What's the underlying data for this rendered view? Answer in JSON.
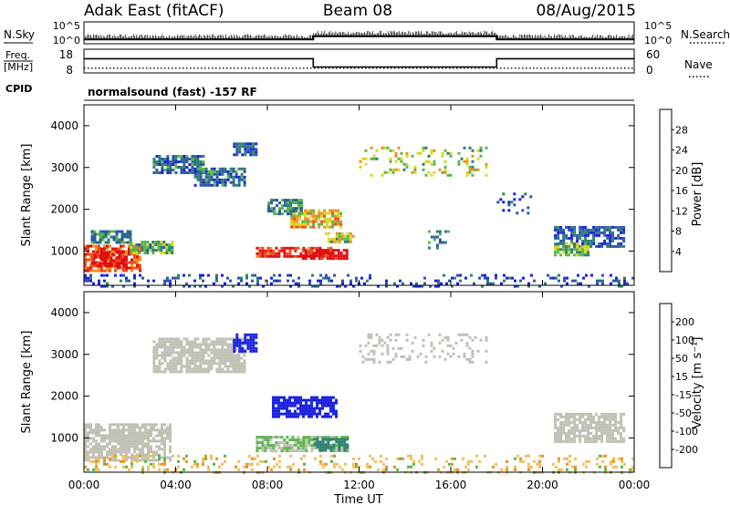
{
  "header": {
    "station": "Adak East (fitACF)",
    "beam": "Beam 08",
    "date": "08/Aug/2015",
    "cpid_label": "CPID",
    "cpid_value": "normalsound (fast) -157 RF"
  },
  "colors": {
    "frame": "#000000",
    "scatter_fill": "#ffffff",
    "ground": "#b4b4b4"
  },
  "chart_data": [
    {
      "type": "line",
      "panel": "noise",
      "left_label": "N.Sky",
      "right_label": "N.Search",
      "right_key_style": "dotted",
      "yscale": "log",
      "left_ticks": [
        "10^5",
        "10^0"
      ],
      "right_ticks": [
        "10^5",
        "10^0"
      ],
      "x_hours": [
        0,
        10,
        10,
        18,
        18,
        24
      ],
      "series": [
        {
          "values": [
            3,
            3,
            30,
            30,
            3,
            3
          ]
        }
      ]
    },
    {
      "type": "line",
      "panel": "frequency",
      "left_label_line1": "Freq.",
      "left_label_line2": "[MHz]",
      "right_label": "Nave",
      "right_key_style": "dotted",
      "left_ticks": [
        "18",
        "8"
      ],
      "right_ticks": [
        "60",
        "0"
      ],
      "ylim": [
        8,
        18
      ],
      "x_hours": [
        0,
        10,
        10,
        18,
        18,
        24
      ],
      "series": [
        {
          "values": [
            14,
            14,
            10.5,
            10.5,
            14,
            14
          ]
        },
        {
          "style": "dotted",
          "values": [
            10,
            10,
            10,
            10,
            10,
            10
          ]
        }
      ]
    },
    {
      "type": "heatmap",
      "panel": "power",
      "ylabel": "Slant Range [km]",
      "yticks": [
        "4000",
        "3000",
        "2000",
        "1000"
      ],
      "ylim": [
        180,
        4500
      ],
      "xlim": [
        0,
        24
      ],
      "colorbar": {
        "title": "Power [dB]",
        "labels": [
          "28",
          "24",
          "20",
          "16",
          "12",
          "8",
          "4"
        ],
        "colors": [
          "#1a22e0",
          "#2c56a8",
          "#2e8070",
          "#5ab84a",
          "#d8d820",
          "#f09020",
          "#f04a20",
          "#e00e10"
        ]
      },
      "regions": [
        {
          "t": [
            0.0,
            2.5
          ],
          "r": [
            500,
            1150
          ],
          "level": 0.8
        },
        {
          "t": [
            0.3,
            1.8
          ],
          "r": [
            650,
            1000
          ],
          "level": 1.0
        },
        {
          "t": [
            2.0,
            3.8
          ],
          "r": [
            950,
            1250
          ],
          "level": 0.4
        },
        {
          "t": [
            0.3,
            2.0
          ],
          "r": [
            1200,
            1500
          ],
          "level": 0.3
        },
        {
          "t": [
            3.0,
            5.2
          ],
          "r": [
            2900,
            3300
          ],
          "level": 0.25
        },
        {
          "t": [
            4.8,
            7.0
          ],
          "r": [
            2600,
            3000
          ],
          "level": 0.25
        },
        {
          "t": [
            6.5,
            7.5
          ],
          "r": [
            3300,
            3600
          ],
          "level": 0.2
        },
        {
          "t": [
            7.5,
            10.8
          ],
          "r": [
            850,
            1100
          ],
          "level": 0.9
        },
        {
          "t": [
            9.5,
            11.5
          ],
          "r": [
            800,
            1050
          ],
          "level": 1.0
        },
        {
          "t": [
            9.0,
            11.2
          ],
          "r": [
            1550,
            2000
          ],
          "level": 0.6
        },
        {
          "t": [
            8.0,
            9.5
          ],
          "r": [
            1900,
            2250
          ],
          "level": 0.3
        },
        {
          "t": [
            10.5,
            11.8
          ],
          "r": [
            1200,
            1450
          ],
          "level": 0.5
        },
        {
          "t": [
            12.0,
            17.5
          ],
          "r": [
            2800,
            3500
          ],
          "level": 0.5,
          "sparse": true
        },
        {
          "t": [
            15.0,
            16.0
          ],
          "r": [
            1100,
            1500
          ],
          "level": 0.3,
          "sparse": true
        },
        {
          "t": [
            18.0,
            19.5
          ],
          "r": [
            1900,
            2400
          ],
          "level": 0.15,
          "sparse": true
        },
        {
          "t": [
            20.5,
            23.5
          ],
          "r": [
            1100,
            1600
          ],
          "level": 0.2
        },
        {
          "t": [
            20.5,
            22.0
          ],
          "r": [
            900,
            1200
          ],
          "level": 0.45
        },
        {
          "t": [
            0.0,
            24.0
          ],
          "r": [
            180,
            450
          ],
          "level": 0.15,
          "sparse": true
        }
      ]
    },
    {
      "type": "heatmap",
      "panel": "velocity",
      "ylabel": "Slant Range [km]",
      "yticks": [
        "4000",
        "3000",
        "2000",
        "1000"
      ],
      "ylim": [
        180,
        4500
      ],
      "xlim": [
        0,
        24
      ],
      "xticks": [
        "00:00",
        "04:00",
        "08:00",
        "12:00",
        "16:00",
        "20:00",
        "00:00"
      ],
      "xlabel": "Time UT",
      "colorbar": {
        "title": "Velocity [m s⁻¹]",
        "labels": [
          "200",
          "100",
          "50",
          "15",
          "-15",
          "-50",
          "-100",
          "-200"
        ],
        "colors": [
          "#e00e10",
          "#f04a20",
          "#f09020",
          "#f0c060",
          "#c0c0b4",
          "#5ab84a",
          "#2e8070",
          "#2c56a8",
          "#1a22e0"
        ]
      },
      "regions": [
        {
          "t": [
            0.0,
            3.8
          ],
          "r": [
            450,
            1350
          ],
          "v": 0
        },
        {
          "t": [
            3.0,
            7.0
          ],
          "r": [
            2600,
            3400
          ],
          "v": 0
        },
        {
          "t": [
            6.5,
            7.5
          ],
          "r": [
            3100,
            3500
          ],
          "v": 150
        },
        {
          "t": [
            8.2,
            11.0
          ],
          "r": [
            1500,
            2000
          ],
          "v": 180
        },
        {
          "t": [
            7.5,
            11.5
          ],
          "r": [
            700,
            1050
          ],
          "v": -30
        },
        {
          "t": [
            10.0,
            11.5
          ],
          "r": [
            700,
            1000
          ],
          "v": 60
        },
        {
          "t": [
            12.0,
            17.5
          ],
          "r": [
            2800,
            3500
          ],
          "v": 0,
          "sparse": true
        },
        {
          "t": [
            20.5,
            23.5
          ],
          "r": [
            900,
            1600
          ],
          "v": 0
        },
        {
          "t": [
            0.0,
            24.0
          ],
          "r": [
            180,
            600
          ],
          "v": -40,
          "sparse": true
        }
      ]
    }
  ]
}
